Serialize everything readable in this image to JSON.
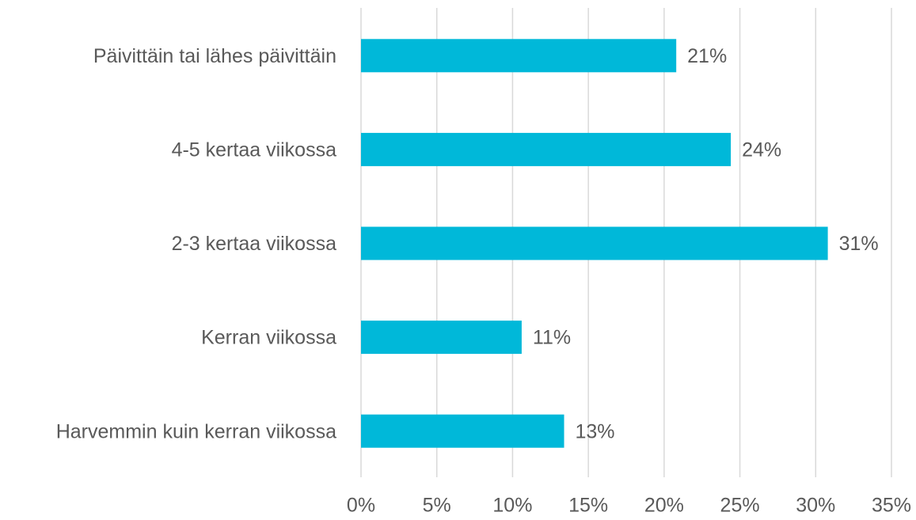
{
  "chart_data": {
    "type": "bar",
    "orientation": "horizontal",
    "categories": [
      "Päivittäin tai lähes päivittäin",
      "4-5 kertaa viikossa",
      "2-3 kertaa viikossa",
      "Kerran viikossa",
      "Harvemmin kuin kerran viikossa"
    ],
    "values": [
      20.8,
      24.4,
      30.8,
      10.6,
      13.4
    ],
    "value_labels": [
      "21%",
      "24%",
      "31%",
      "11%",
      "13%"
    ],
    "color": "#00b8d9",
    "xlim": [
      0,
      35
    ],
    "xticks": [
      {
        "value": 0,
        "label": "0%"
      },
      {
        "value": 5,
        "label": "5%"
      },
      {
        "value": 10,
        "label": "10%"
      },
      {
        "value": 15,
        "label": "15%"
      },
      {
        "value": 20,
        "label": "20%"
      },
      {
        "value": 25,
        "label": "25%"
      },
      {
        "value": 30,
        "label": "30%"
      },
      {
        "value": 35,
        "label": "35%"
      }
    ],
    "grid": true
  }
}
